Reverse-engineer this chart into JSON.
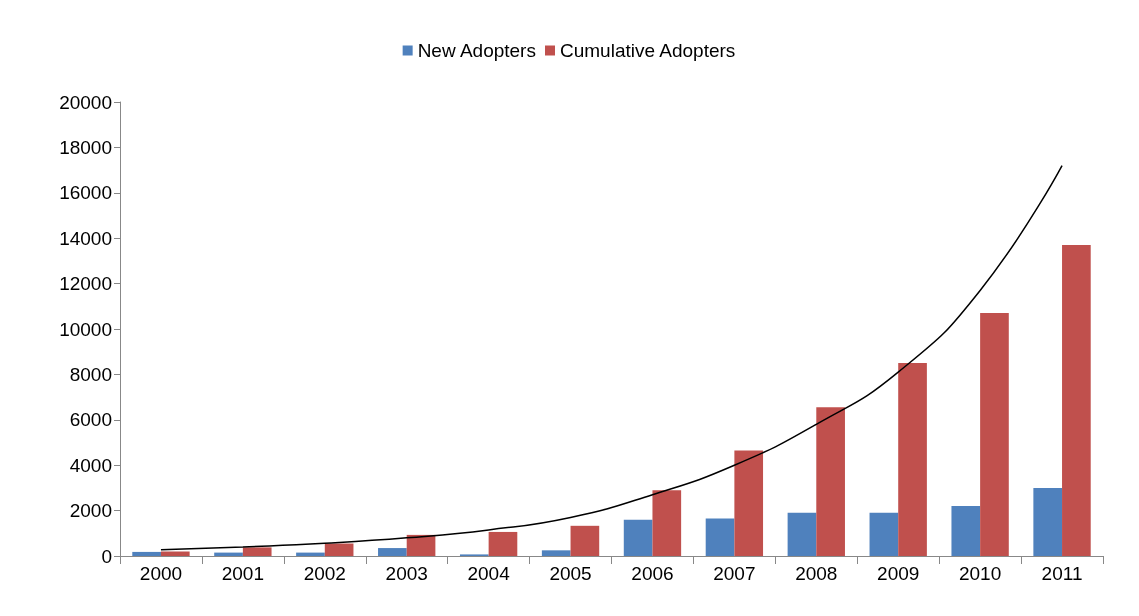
{
  "chart_data": {
    "type": "bar",
    "categories": [
      "2000",
      "2001",
      "2002",
      "2003",
      "2004",
      "2005",
      "2006",
      "2007",
      "2008",
      "2009",
      "2010",
      "2011"
    ],
    "series": [
      {
        "name": "New Adopters",
        "color": "#4f81bd",
        "values": [
          180,
          150,
          150,
          350,
          70,
          250,
          1600,
          1650,
          1900,
          1900,
          2200,
          3000
        ]
      },
      {
        "name": "Cumulative Adopters",
        "color": "#c0504d",
        "values": [
          200,
          380,
          550,
          930,
          1060,
          1330,
          2900,
          4650,
          6550,
          8500,
          10700,
          13700
        ]
      },
      {
        "type": "line",
        "color": "#000000",
        "values": [
          270,
          400,
          560,
          800,
          1150,
          1700,
          2700,
          4000,
          5800,
          8100,
          11700,
          17200
        ]
      }
    ],
    "ylim": [
      0,
      20000
    ],
    "yticks": [
      0,
      2000,
      4000,
      6000,
      8000,
      10000,
      12000,
      14000,
      16000,
      18000,
      20000
    ],
    "grid": false,
    "legend": "top",
    "marker": "none"
  }
}
